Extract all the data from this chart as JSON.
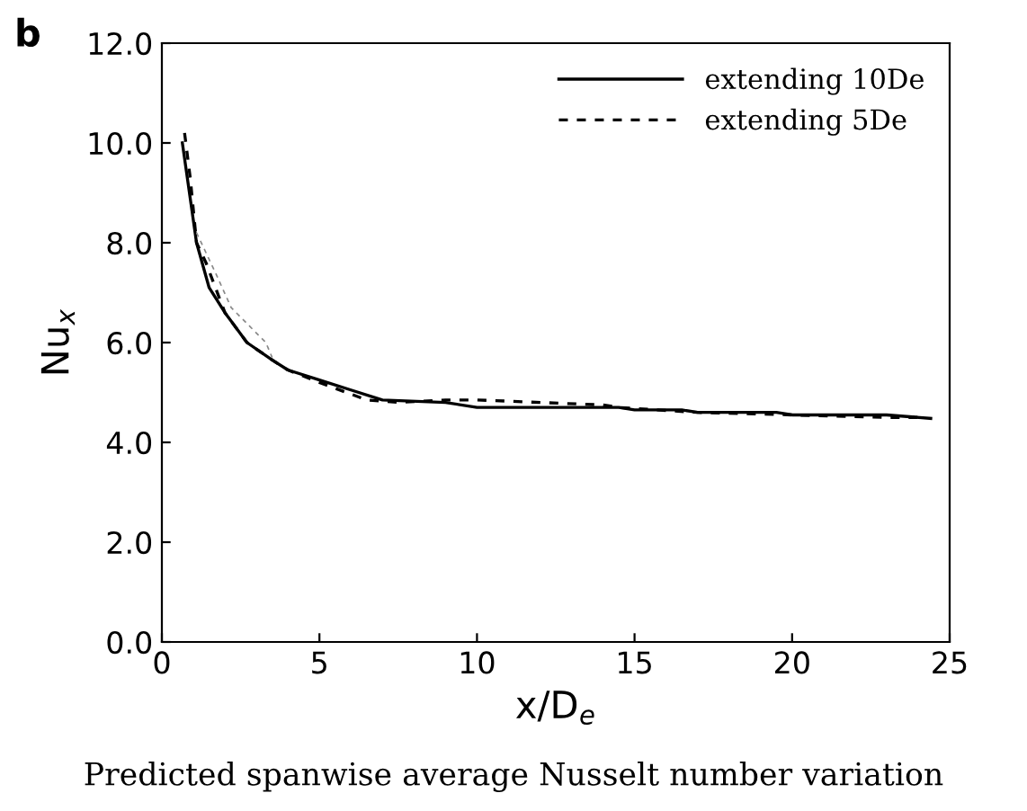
{
  "chart_data": {
    "type": "line",
    "xlabel": "x/D$_{e}$",
    "ylabel": "Nu$_{x}$",
    "xlim": [
      0,
      25
    ],
    "xticks": [
      0,
      5,
      10,
      15,
      20,
      25
    ],
    "ylim": [
      0,
      12
    ],
    "yticks": [
      {
        "value": 0,
        "label": "0.0"
      },
      {
        "value": 2,
        "label": "2.0"
      },
      {
        "value": 4,
        "label": "4.0"
      },
      {
        "value": 6,
        "label": "6.0"
      },
      {
        "value": 8,
        "label": "8.0"
      },
      {
        "value": 10,
        "label": "10.0"
      },
      {
        "value": 12,
        "label": "12.0"
      }
    ],
    "grid": false,
    "legend": "top right",
    "series": [
      {
        "name": "extending 10De",
        "color": "#000000",
        "line_style": "solid",
        "x": [
          0.65,
          1.1,
          1.5,
          2,
          2.7,
          3.5,
          4,
          5,
          6,
          7,
          9,
          10,
          14.5,
          15,
          16.5,
          17,
          19.5,
          20,
          23,
          24.4
        ],
        "values": [
          10.0,
          8.0,
          7.1,
          6.6,
          6.0,
          5.65,
          5.45,
          5.25,
          5.05,
          4.85,
          4.8,
          4.7,
          4.7,
          4.65,
          4.65,
          4.6,
          4.6,
          4.55,
          4.55,
          4.48
        ]
      },
      {
        "name": "extending 5De",
        "color": "#000000",
        "line_style": "dashed",
        "x": [
          0.72,
          0.9,
          1.1,
          1.4,
          2,
          2.7,
          3.5,
          4,
          5,
          6.5,
          7.5,
          9,
          10,
          14,
          14.5,
          17,
          20,
          23,
          24
        ],
        "values": [
          10.2,
          9.3,
          8.0,
          7.6,
          6.6,
          6.0,
          5.65,
          5.45,
          5.2,
          4.85,
          4.8,
          4.85,
          4.85,
          4.75,
          4.7,
          4.6,
          4.55,
          4.5,
          4.5
        ]
      },
      {
        "color": "#888888",
        "line_style": "dashed",
        "x": [
          1.1,
          1.7,
          2.2,
          3.3,
          3.5
        ],
        "values": [
          8.2,
          7.4,
          6.7,
          6.0,
          5.7
        ]
      }
    ],
    "annotations": [
      "b",
      "Predicted spanwise average Nusselt number variation"
    ]
  }
}
